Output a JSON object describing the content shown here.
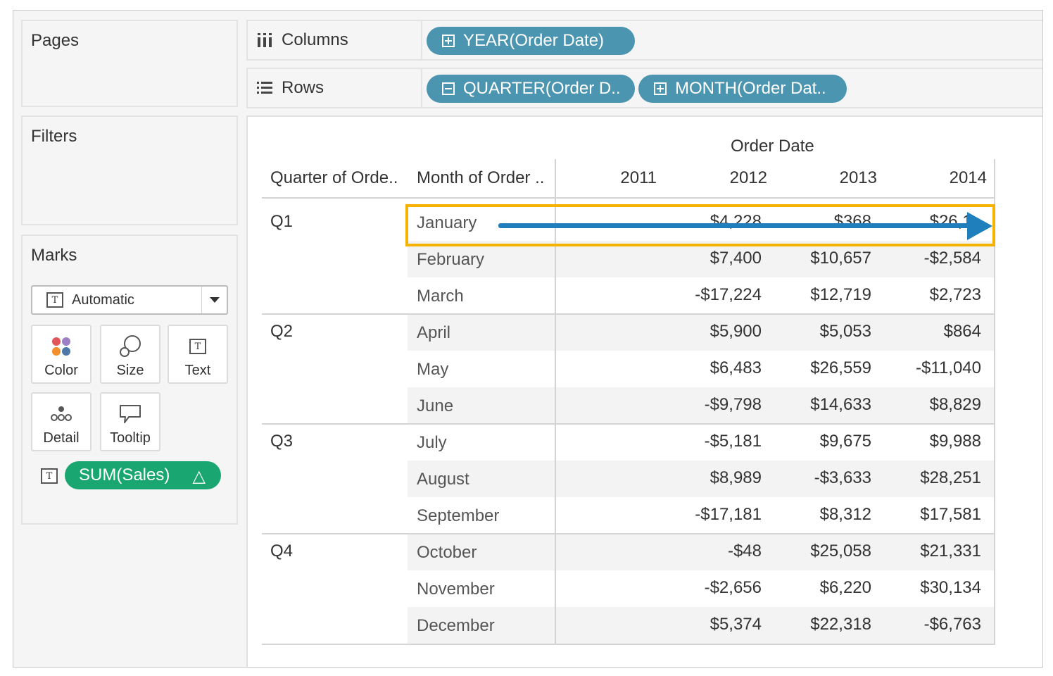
{
  "pages": {
    "title": "Pages"
  },
  "filters": {
    "title": "Filters"
  },
  "marks": {
    "title": "Marks",
    "mark_type": "Automatic",
    "buttons": [
      {
        "label": "Color",
        "icon": "color-icon"
      },
      {
        "label": "Size",
        "icon": "size-icon"
      },
      {
        "label": "Text",
        "icon": "text-icon"
      },
      {
        "label": "Detail",
        "icon": "detail-icon"
      },
      {
        "label": "Tooltip",
        "icon": "tooltip-icon"
      }
    ],
    "measure_pill": {
      "label": "SUM(Sales)",
      "delta_symbol": "△",
      "color": "#1aa671"
    }
  },
  "shelves": {
    "columns": {
      "label": "Columns",
      "pills": [
        {
          "label": "YEAR(Order Date)",
          "expand": "plus"
        }
      ]
    },
    "rows": {
      "label": "Rows",
      "pills": [
        {
          "label": "QUARTER(Order D..",
          "expand": "minus"
        },
        {
          "label": "MONTH(Order Dat..",
          "expand": "plus"
        }
      ]
    },
    "pill_color": "#4c95b0"
  },
  "view": {
    "column_group_header": "Order Date",
    "row_headers": [
      "Quarter of Orde..",
      "Month of Order .."
    ],
    "years": [
      "2011",
      "2012",
      "2013",
      "2014"
    ],
    "quarters": [
      "Q1",
      "Q2",
      "Q3",
      "Q4"
    ],
    "rows": [
      {
        "month": "January",
        "values": [
          "",
          "$4,228",
          "$368",
          "$26,1.."
        ]
      },
      {
        "month": "February",
        "values": [
          "",
          "$7,400",
          "$10,657",
          "-$2,584"
        ]
      },
      {
        "month": "March",
        "values": [
          "",
          "-$17,224",
          "$12,719",
          "$2,723"
        ]
      },
      {
        "month": "April",
        "values": [
          "",
          "$5,900",
          "$5,053",
          "$864"
        ]
      },
      {
        "month": "May",
        "values": [
          "",
          "$6,483",
          "$26,559",
          "-$11,040"
        ]
      },
      {
        "month": "June",
        "values": [
          "",
          "-$9,798",
          "$14,633",
          "$8,829"
        ]
      },
      {
        "month": "July",
        "values": [
          "",
          "-$5,181",
          "$9,675",
          "$9,988"
        ]
      },
      {
        "month": "August",
        "values": [
          "",
          "$8,989",
          "-$3,633",
          "$28,251"
        ]
      },
      {
        "month": "September",
        "values": [
          "",
          "-$17,181",
          "$8,312",
          "$17,581"
        ]
      },
      {
        "month": "October",
        "values": [
          "",
          "-$48",
          "$25,058",
          "$21,331"
        ]
      },
      {
        "month": "November",
        "values": [
          "",
          "-$2,656",
          "$6,220",
          "$30,134"
        ]
      },
      {
        "month": "December",
        "values": [
          "",
          "$5,374",
          "$22,318",
          "-$6,763"
        ]
      }
    ],
    "highlight_color": "#f5b300",
    "arrow_color": "#1f7fbc"
  }
}
